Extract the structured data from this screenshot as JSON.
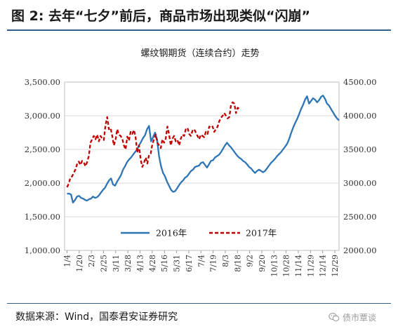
{
  "figure": {
    "title": "图 2: 去年“七夕”前后，商品市场出现类似“闪崩”",
    "source": "数据来源：Wind，国泰君安证券研究",
    "watermark": "债市覃谈",
    "watermark_icon": "wechat-icon"
  },
  "chart_data": {
    "type": "line",
    "title": "螺纹钢期货（连续合约）走势",
    "xlabel": "",
    "ylabel": "",
    "y_left": {
      "ylim": [
        1000,
        3500
      ],
      "ticks": [
        "1,000.00",
        "1,500.00",
        "2,000.00",
        "2,500.00",
        "3,000.00",
        "3,500.00"
      ]
    },
    "y_right": {
      "ylim": [
        2000,
        4500
      ],
      "ticks": [
        "2000.00",
        "2500.00",
        "3000.00",
        "3500.00",
        "4000.00",
        "4500.00"
      ]
    },
    "x_ticks": [
      "1/4",
      "1/20",
      "2/3",
      "2/25",
      "3/11",
      "3/28",
      "4/13",
      "4/28",
      "5/16",
      "5/31",
      "6/17",
      "7/4",
      "7/19",
      "8/3",
      "8/18",
      "9/2",
      "9/20",
      "10/13",
      "10/28",
      "11/14",
      "11/29",
      "12/14",
      "12/29"
    ],
    "grid": true,
    "legend_position": "bottom-center",
    "colors": {
      "s2016": "#2e75b6",
      "s2017": "#c00000"
    },
    "series": [
      {
        "name": "2016年",
        "axis": "left",
        "style": "solid",
        "values": [
          1840,
          1845,
          1830,
          1710,
          1750,
          1800,
          1810,
          1780,
          1770,
          1750,
          1740,
          1760,
          1770,
          1800,
          1780,
          1790,
          1820,
          1860,
          1900,
          1930,
          1990,
          2040,
          2070,
          1980,
          1960,
          2020,
          2070,
          2120,
          2200,
          2250,
          2310,
          2350,
          2380,
          2420,
          2460,
          2500,
          2560,
          2610,
          2670,
          2710,
          2800,
          2850,
          2620,
          2680,
          2750,
          2650,
          2400,
          2250,
          2150,
          2100,
          2020,
          1960,
          1900,
          1870,
          1880,
          1920,
          1970,
          2010,
          2040,
          2080,
          2100,
          2140,
          2180,
          2200,
          2240,
          2250,
          2260,
          2300,
          2310,
          2270,
          2230,
          2280,
          2330,
          2340,
          2380,
          2400,
          2420,
          2460,
          2510,
          2560,
          2600,
          2560,
          2530,
          2490,
          2450,
          2410,
          2380,
          2360,
          2330,
          2310,
          2280,
          2240,
          2220,
          2180,
          2150,
          2180,
          2200,
          2180,
          2160,
          2180,
          2220,
          2260,
          2300,
          2330,
          2360,
          2400,
          2430,
          2460,
          2500,
          2540,
          2580,
          2650,
          2740,
          2820,
          2890,
          2950,
          3020,
          3100,
          3160,
          3240,
          3290,
          3180,
          3220,
          3260,
          3240,
          3200,
          3230,
          3280,
          3300,
          3250,
          3180,
          3150,
          3100,
          3050,
          3000,
          2960,
          2930
        ]
      },
      {
        "name": "2017年",
        "axis": "right",
        "style": "dashed",
        "values": [
          2940,
          2990,
          3080,
          3100,
          3150,
          3200,
          3280,
          3320,
          3270,
          3330,
          3310,
          3250,
          3310,
          3400,
          3600,
          3650,
          3700,
          3650,
          3720,
          3620,
          3700,
          3660,
          3640,
          3860,
          3980,
          3800,
          3820,
          3700,
          3560,
          3640,
          3800,
          3720,
          3700,
          3660,
          3560,
          3500,
          3690,
          3630,
          3760,
          3730,
          3790,
          3680,
          3450,
          3560,
          3350,
          3240,
          3300,
          3380,
          3290,
          3420,
          3440,
          3580,
          3650,
          3720,
          3600,
          3560,
          3520,
          3650,
          3600,
          3660,
          3840,
          3720,
          3560,
          3660,
          3700,
          3620,
          3640,
          3560,
          3660,
          3720,
          3700,
          3800,
          3820,
          3730,
          3700,
          3780,
          3800,
          3750,
          3700,
          3650,
          3720,
          3700,
          3680,
          3760,
          3730,
          3840,
          3820,
          3840,
          3760,
          3800,
          3840,
          3920,
          3970,
          4000,
          4040,
          4000,
          3960,
          3980,
          4160,
          4200,
          4180,
          4040,
          4120,
          4100
        ]
      }
    ]
  }
}
